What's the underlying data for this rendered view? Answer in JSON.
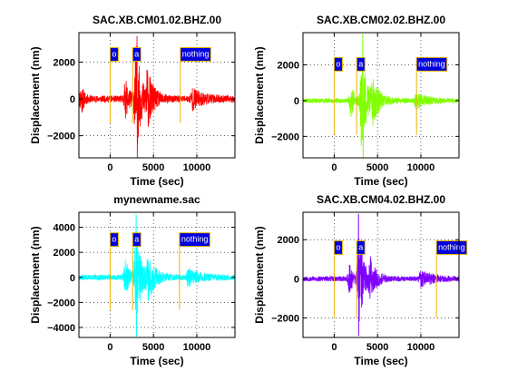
{
  "chart_data": [
    {
      "type": "line",
      "title": "SAC.XB.CM01.02.BHZ.00",
      "xlabel": "Time (sec)",
      "ylabel": "Displacement (nm)",
      "xlim": [
        -3600,
        14400
      ],
      "ylim": [
        -3200,
        3600
      ],
      "xticks": [
        0,
        5000,
        10000
      ],
      "yticks": [
        -2000,
        0,
        2000
      ],
      "grid": true,
      "color": "#ff0000",
      "trace": {
        "seed": 11,
        "noise": 180,
        "pulses": [
          [
            -3300,
            300,
            800
          ],
          [
            1800,
            500,
            900
          ],
          [
            3000,
            600,
            2900
          ],
          [
            4300,
            700,
            1300
          ],
          [
            9500,
            1200,
            500
          ]
        ],
        "peak": [
          3100,
          3400,
          -3200
        ]
      },
      "markers": [
        {
          "x": 0,
          "label": "o",
          "ymin": -1300,
          "flag_y": 2000
        },
        {
          "x": 2600,
          "label": "a",
          "ymin": -1300,
          "flag_y": 2000
        },
        {
          "x": 8100,
          "label": "nothing",
          "ymin": -1300,
          "flag_y": 2000
        }
      ]
    },
    {
      "type": "line",
      "title": "SAC.XB.CM02.02.BHZ.00",
      "xlabel": "Time (sec)",
      "ylabel": "Displacement (nm)",
      "xlim": [
        -3600,
        14400
      ],
      "ylim": [
        -3200,
        3800
      ],
      "xticks": [
        0,
        5000,
        10000
      ],
      "yticks": [
        -2000,
        0,
        2000
      ],
      "grid": true,
      "color": "#80ff00",
      "trace": {
        "seed": 23,
        "noise": 130,
        "pulses": [
          [
            2000,
            400,
            900
          ],
          [
            3200,
            600,
            2700
          ],
          [
            4500,
            800,
            1000
          ],
          [
            9500,
            1200,
            400
          ]
        ],
        "peak": [
          3300,
          3700,
          -3200
        ]
      },
      "markers": [
        {
          "x": 0,
          "label": "o",
          "ymin": -1900,
          "flag_y": 1600
        },
        {
          "x": 2600,
          "label": "a",
          "ymin": -1900,
          "flag_y": 1600
        },
        {
          "x": 9500,
          "label": "nothing",
          "ymin": -1900,
          "flag_y": 1600
        }
      ]
    },
    {
      "type": "line",
      "title": "mynewname.sac",
      "xlabel": "Time (sec)",
      "ylabel": "Displacement (nm)",
      "xlim": [
        -3600,
        14400
      ],
      "ylim": [
        -4800,
        5200
      ],
      "xticks": [
        0,
        5000,
        10000
      ],
      "yticks": [
        -4000,
        -2000,
        0,
        2000,
        4000
      ],
      "grid": true,
      "color": "#00ffff",
      "trace": {
        "seed": 37,
        "noise": 220,
        "pulses": [
          [
            1800,
            500,
            1300
          ],
          [
            3000,
            600,
            3600
          ],
          [
            4400,
            800,
            1500
          ],
          [
            9000,
            1300,
            600
          ]
        ],
        "peak": [
          3000,
          5000,
          -4700
        ]
      },
      "markers": [
        {
          "x": 0,
          "label": "o",
          "ymin": -2600,
          "flag_y": 2400
        },
        {
          "x": 2600,
          "label": "a",
          "ymin": -2600,
          "flag_y": 2400
        },
        {
          "x": 8000,
          "label": "nothing",
          "ymin": -2600,
          "flag_y": 2400
        }
      ]
    },
    {
      "type": "line",
      "title": "SAC.XB.CM04.02.BHZ.00",
      "xlabel": "Time (sec)",
      "ylabel": "Displacement (nm)",
      "xlim": [
        -3600,
        14400
      ],
      "ylim": [
        -3000,
        3400
      ],
      "xticks": [
        0,
        5000,
        10000
      ],
      "yticks": [
        -2000,
        0,
        2000
      ],
      "grid": true,
      "color": "#8000ff",
      "trace": {
        "seed": 53,
        "noise": 130,
        "pulses": [
          [
            1800,
            400,
            700
          ],
          [
            2900,
            500,
            2500
          ],
          [
            4200,
            700,
            900
          ],
          [
            10000,
            1500,
            350
          ]
        ],
        "peak": [
          2800,
          3300,
          -2900
        ]
      },
      "markers": [
        {
          "x": 0,
          "label": "o",
          "ymin": -2000,
          "flag_y": 1200
        },
        {
          "x": 2600,
          "label": "a",
          "ymin": -2000,
          "flag_y": 1200
        },
        {
          "x": 11800,
          "label": "nothing",
          "ymin": -2000,
          "flag_y": 1200
        }
      ]
    }
  ]
}
